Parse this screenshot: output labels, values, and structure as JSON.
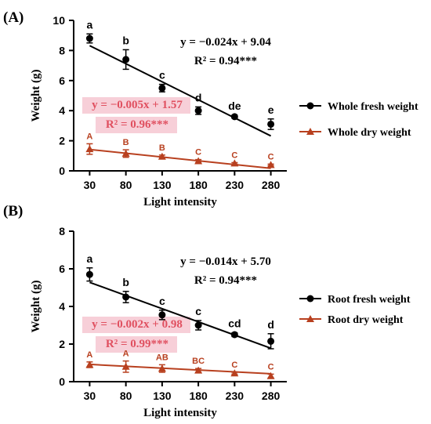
{
  "colors": {
    "fresh": "#000000",
    "dry": "#b8401f",
    "dry_eq_text": "#e05060",
    "dry_eq_highlight": "#f7cfd8"
  },
  "chart_data": [
    {
      "type": "scatter",
      "panel_label": "(A)",
      "xlabel": "Light intensity",
      "ylabel": "Weight (g)",
      "x_ticks": [
        30,
        80,
        130,
        180,
        230,
        280
      ],
      "ylim": [
        0,
        10
      ],
      "y_ticks": [
        0,
        2,
        4,
        6,
        8,
        10
      ],
      "legend_position": "right",
      "series": [
        {
          "name": "Whole fresh weight",
          "marker": "circle",
          "color": "#000000",
          "x": [
            30,
            80,
            130,
            180,
            230,
            280
          ],
          "y": [
            8.8,
            7.4,
            5.5,
            4.0,
            3.6,
            3.1
          ],
          "err": [
            0.3,
            0.65,
            0.25,
            0.25,
            0.1,
            0.35
          ],
          "letters": [
            "a",
            "b",
            "c",
            "d",
            "de",
            "e"
          ],
          "fit": {
            "slope": -0.024,
            "intercept": 9.04
          },
          "equation": "y = −0.024x + 9.04",
          "r2": "R² = 0.94***"
        },
        {
          "name": "Whole dry weight",
          "marker": "triangle",
          "color": "#b8401f",
          "x": [
            30,
            80,
            130,
            180,
            230,
            280
          ],
          "y": [
            1.45,
            1.15,
            0.95,
            0.65,
            0.5,
            0.4
          ],
          "err": [
            0.35,
            0.25,
            0.1,
            0.1,
            0.05,
            0.05
          ],
          "letters": [
            "A",
            "B",
            "B",
            "C",
            "C",
            "C"
          ],
          "fit": {
            "slope": -0.005,
            "intercept": 1.57
          },
          "equation": "y = −0.005x + 1.57",
          "r2": "R² = 0.96***"
        }
      ]
    },
    {
      "type": "scatter",
      "panel_label": "(B)",
      "xlabel": "Light intensity",
      "ylabel": "Weight (g)",
      "x_ticks": [
        30,
        80,
        130,
        180,
        230,
        280
      ],
      "ylim": [
        0,
        8
      ],
      "y_ticks": [
        0,
        2,
        4,
        6,
        8
      ],
      "legend_position": "right",
      "series": [
        {
          "name": "Root fresh weight",
          "marker": "circle",
          "color": "#000000",
          "x": [
            30,
            80,
            130,
            180,
            230,
            280
          ],
          "y": [
            5.7,
            4.5,
            3.55,
            3.0,
            2.5,
            2.15
          ],
          "err": [
            0.35,
            0.3,
            0.25,
            0.25,
            0.1,
            0.4
          ],
          "letters": [
            "a",
            "b",
            "c",
            "c",
            "cd",
            "d"
          ],
          "fit": {
            "slope": -0.014,
            "intercept": 5.7
          },
          "equation": "y = −0.014x + 5.70",
          "r2": "R² = 0.94***"
        },
        {
          "name": "Root dry weight",
          "marker": "triangle",
          "color": "#b8401f",
          "x": [
            30,
            80,
            130,
            180,
            230,
            280
          ],
          "y": [
            0.9,
            0.8,
            0.7,
            0.6,
            0.45,
            0.3
          ],
          "err": [
            0.15,
            0.3,
            0.2,
            0.1,
            0.05,
            0.1
          ],
          "letters": [
            "A",
            "A",
            "AB",
            "BC",
            "C",
            "C"
          ],
          "fit": {
            "slope": -0.002,
            "intercept": 0.98
          },
          "equation": "y = −0.002x + 0.98",
          "r2": "R² = 0.99***"
        }
      ]
    }
  ]
}
